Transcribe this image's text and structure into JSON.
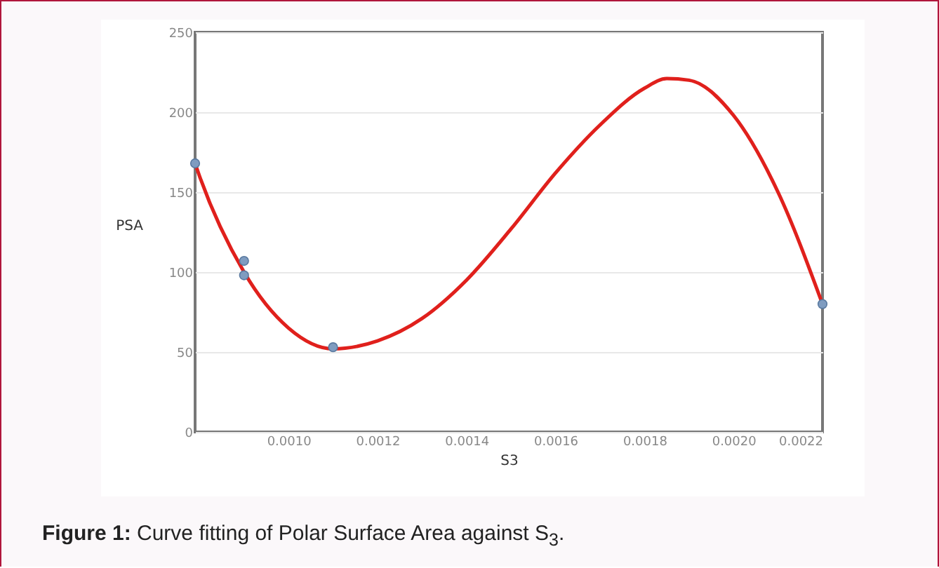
{
  "chart_data": {
    "type": "scatter",
    "xlabel": "S3",
    "ylabel": "PSA",
    "annotations": [
      "Figure 1: Curve fitting of Polar Surface Area against S$_{3}$."
    ],
    "xlim": [
      0.00079,
      0.0022
    ],
    "ylim": [
      0,
      250
    ],
    "xticks": [
      {
        "value": 0.001,
        "label": "0.0010"
      },
      {
        "value": 0.0012,
        "label": "0.0012"
      },
      {
        "value": 0.0014,
        "label": "0.0014"
      },
      {
        "value": 0.0016,
        "label": "0.0016"
      },
      {
        "value": 0.0018,
        "label": "0.0018"
      },
      {
        "value": 0.002,
        "label": "0.0020"
      },
      {
        "value": 0.0022,
        "label": "0.0022"
      }
    ],
    "yticks": [
      0,
      50,
      100,
      150,
      200,
      250
    ],
    "grid": "y",
    "marker": "circle",
    "series": [
      {
        "type": "line",
        "color": "#e0201c",
        "marker": "none",
        "line_style": "solid",
        "x": [
          0.00079,
          0.0008,
          0.0009,
          0.001,
          0.0011,
          0.0012,
          0.0013,
          0.0014,
          0.0015,
          0.0016,
          0.0017,
          0.0018,
          0.00185,
          0.0019,
          0.002,
          0.0021,
          0.0022
        ],
        "values": [
          168,
          160,
          100,
          65,
          52,
          57,
          71,
          95,
          127,
          162,
          192,
          215,
          221,
          220,
          198,
          150,
          80
        ]
      },
      {
        "color": "#7f9cc0",
        "x": [
          0.00079,
          0.0009,
          0.0009,
          0.0011,
          0.0022
        ],
        "values": [
          168,
          107,
          98,
          53,
          80
        ]
      }
    ]
  }
}
